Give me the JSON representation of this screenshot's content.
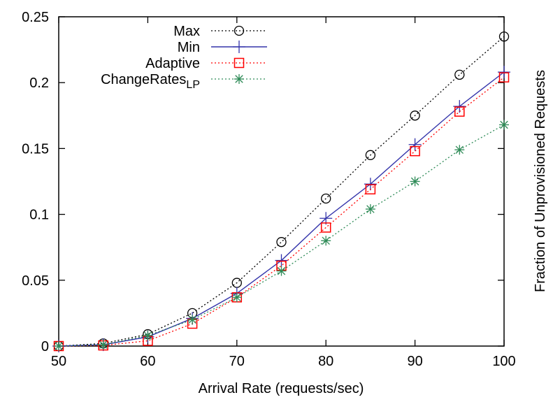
{
  "chart_data": {
    "type": "line",
    "xlabel": "Arrival Rate (requests/sec)",
    "ylabel": "Fraction of Unprovisioned Requests",
    "xlim": [
      50,
      100
    ],
    "ylim": [
      0,
      0.25
    ],
    "x_ticks": [
      "50",
      "60",
      "70",
      "80",
      "90",
      "100"
    ],
    "y_ticks": [
      "0",
      "0.05",
      "0.1",
      "0.15",
      "0.2",
      "0.25"
    ],
    "grid": false,
    "legend_position": "top-left",
    "x": [
      50,
      55,
      60,
      65,
      70,
      75,
      80,
      85,
      90,
      95,
      100
    ],
    "series": [
      {
        "name": "Max",
        "color": "#000000",
        "line": "dotted",
        "marker": "circle",
        "values": [
          0.0,
          0.002,
          0.009,
          0.025,
          0.048,
          0.079,
          0.112,
          0.145,
          0.175,
          0.206,
          0.235
        ]
      },
      {
        "name": "Min",
        "color": "#3333aa",
        "line": "solid",
        "marker": "plus",
        "values": [
          0.0,
          0.001,
          0.007,
          0.021,
          0.04,
          0.065,
          0.097,
          0.123,
          0.153,
          0.182,
          0.208
        ]
      },
      {
        "name": "Adaptive",
        "color": "#ff0000",
        "line": "dotted",
        "marker": "square",
        "values": [
          0.0,
          0.0005,
          0.004,
          0.017,
          0.037,
          0.061,
          0.09,
          0.119,
          0.148,
          0.178,
          0.204
        ]
      },
      {
        "name": "ChangeRates",
        "name_sub": "LP",
        "color": "#2e8b57",
        "line": "dotted",
        "marker": "star",
        "values": [
          0.0,
          0.001,
          0.008,
          0.02,
          0.037,
          0.057,
          0.08,
          0.104,
          0.125,
          0.149,
          0.168
        ]
      }
    ]
  }
}
